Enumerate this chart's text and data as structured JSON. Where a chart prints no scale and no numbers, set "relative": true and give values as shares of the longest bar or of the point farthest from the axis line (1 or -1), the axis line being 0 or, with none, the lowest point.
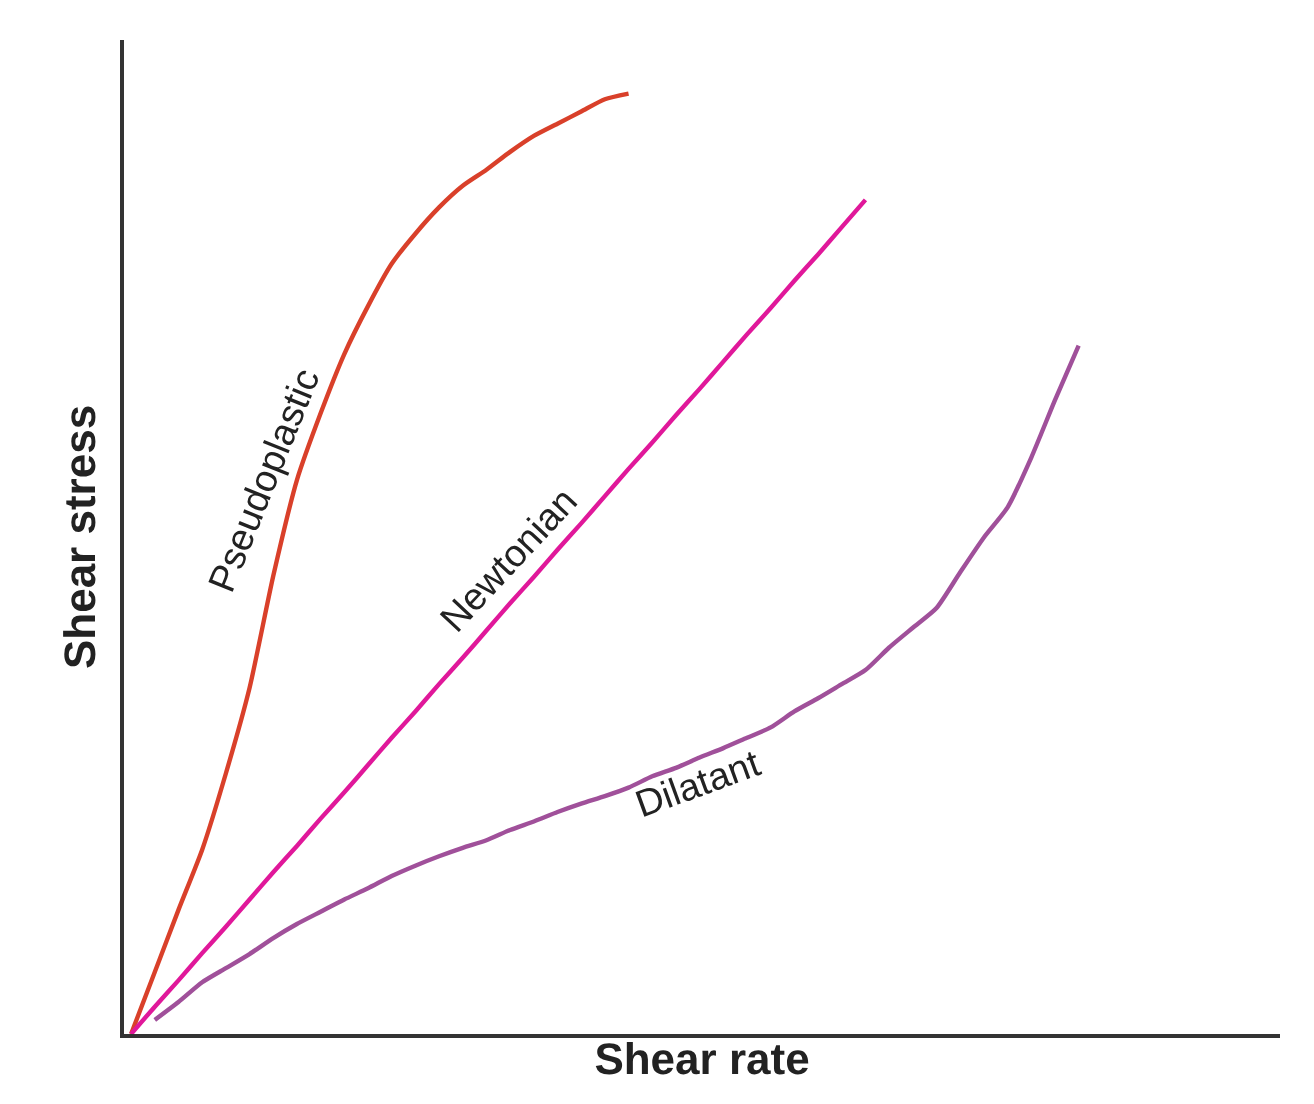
{
  "chart_data": {
    "type": "line",
    "xlabel": "Shear rate",
    "ylabel": "Shear stress",
    "relative": true,
    "legend": false,
    "tick_labels": false,
    "categories": [
      null,
      null,
      null,
      null,
      null,
      null,
      null,
      null,
      null,
      null,
      null,
      null,
      null,
      null,
      null,
      null,
      null,
      null,
      null,
      null,
      null,
      null,
      null,
      null,
      null,
      null,
      null,
      null,
      null,
      null,
      null,
      null,
      null,
      null,
      null,
      null,
      null,
      null,
      null,
      null,
      null
    ],
    "series": [
      {
        "name": "Pseudoplastic",
        "color": "#d9402a",
        "values": [
          0,
          0.066,
          0.132,
          0.196,
          0.277,
          0.368,
          0.487,
          0.589,
          0.66,
          0.723,
          0.774,
          0.819,
          0.851,
          0.879,
          0.902,
          0.919,
          0.938,
          0.955,
          0.968,
          0.981,
          0.994,
          1,
          null,
          null,
          null,
          null,
          null,
          null,
          null,
          null,
          null,
          null,
          null,
          null,
          null,
          null,
          null,
          null,
          null,
          null,
          null
        ]
      },
      {
        "name": "Newtonian",
        "color": "#e0189a",
        "values": [
          0,
          0.029,
          0.057,
          0.086,
          0.114,
          0.143,
          0.172,
          0.2,
          0.229,
          0.257,
          0.286,
          0.315,
          0.343,
          0.372,
          0.4,
          0.429,
          0.458,
          0.486,
          0.515,
          0.543,
          0.572,
          0.601,
          0.629,
          0.658,
          0.686,
          0.715,
          0.744,
          0.772,
          0.801,
          0.829,
          0.858,
          0.887,
          null,
          null,
          null,
          null,
          null,
          null,
          null,
          null,
          null
        ]
      },
      {
        "name": "Dilatant",
        "color": "#a0509a",
        "values": [
          null,
          0.015,
          0.034,
          0.055,
          0.07,
          0.085,
          0.102,
          0.117,
          0.13,
          0.143,
          0.155,
          0.168,
          0.179,
          0.189,
          0.198,
          0.206,
          0.217,
          0.226,
          0.236,
          0.245,
          0.253,
          0.262,
          0.274,
          0.283,
          0.294,
          0.304,
          0.315,
          0.326,
          0.343,
          0.357,
          0.372,
          0.387,
          0.411,
          0.432,
          0.453,
          0.491,
          0.528,
          0.56,
          0.613,
          0.674,
          0.732
        ]
      }
    ]
  }
}
